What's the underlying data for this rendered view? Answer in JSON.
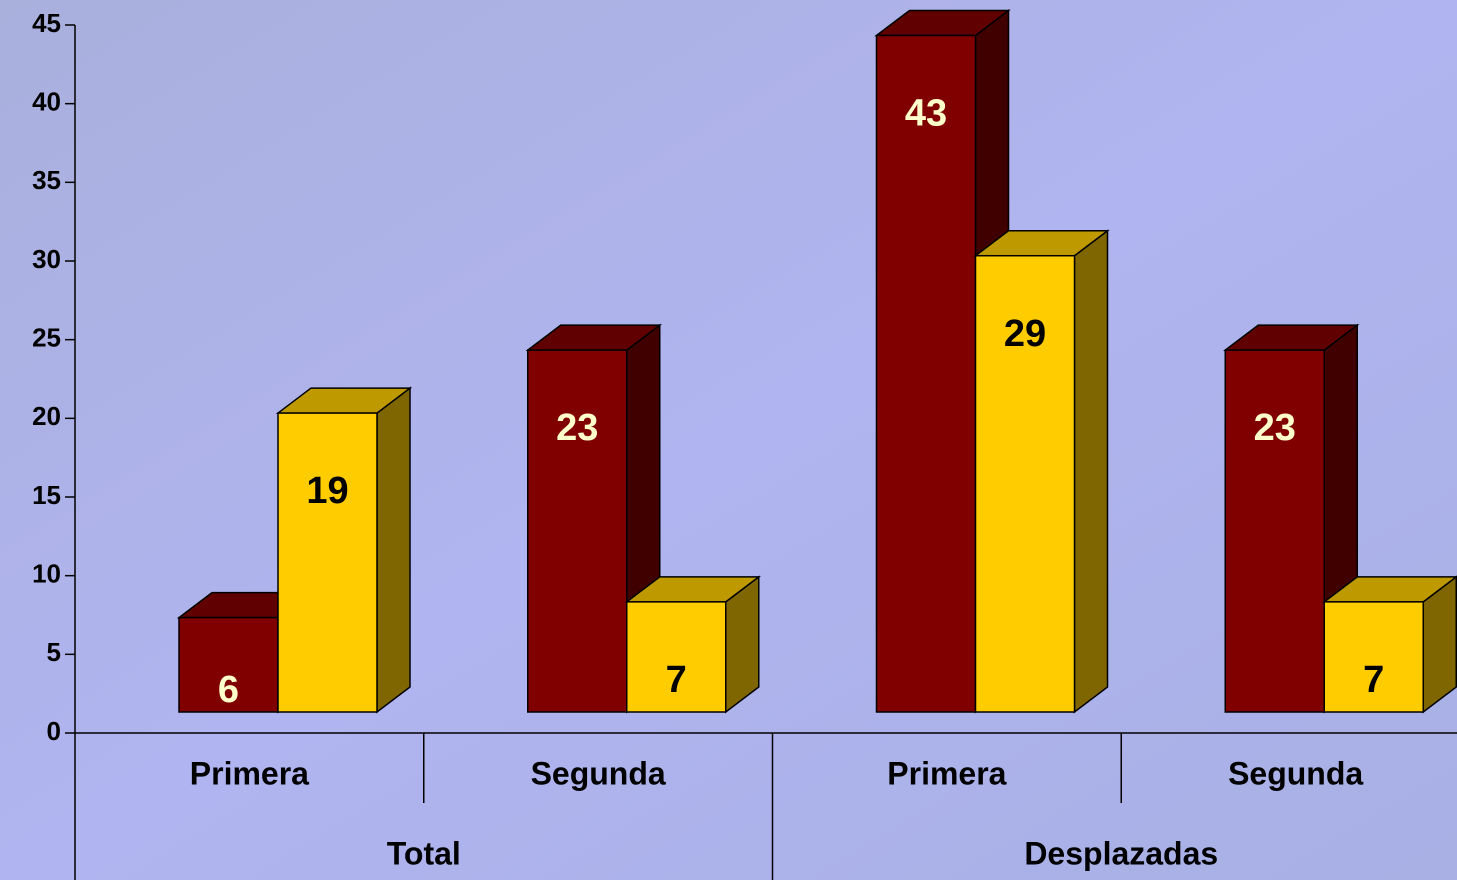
{
  "chart_data": {
    "type": "bar3d",
    "categories": [
      "Primera",
      "Segunda",
      "Primera",
      "Segunda"
    ],
    "groups": [
      "Total",
      "Desplazadas"
    ],
    "series": [
      {
        "color": "#800000",
        "values": [
          6,
          23,
          43,
          23
        ]
      },
      {
        "color": "#ffcc00",
        "values": [
          19,
          7,
          29,
          7
        ]
      }
    ],
    "ylim": [
      0,
      45
    ],
    "yticks": [
      0,
      5,
      10,
      15,
      20,
      25,
      30,
      35,
      40,
      45
    ]
  }
}
